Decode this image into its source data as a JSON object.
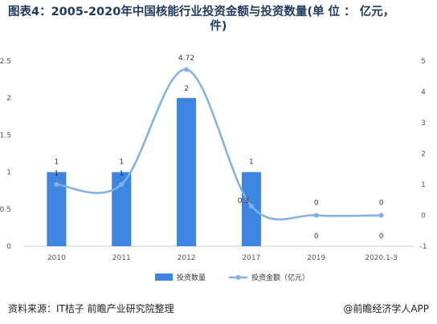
{
  "title_line1": "图表4：2005-2020年中国核能行业投资金额与投资数量(单 位 ： 亿元，",
  "title_line2": "件)",
  "source": "资料来源：IT桔子 前瞻产业研究院整理",
  "brand": "@前瞻经济学人APP",
  "colors": {
    "bar": "#3d85e0",
    "line": "#7fb0e6",
    "title": "#1f3a5f"
  },
  "chart_data": {
    "type": "bar",
    "categories": [
      "2010",
      "2011",
      "2012",
      "2017",
      "2019",
      "2020.1-3"
    ],
    "series": [
      {
        "name": "投资数量",
        "type": "bar",
        "axis": "left",
        "values": [
          1,
          1,
          2,
          1,
          0,
          0
        ],
        "labels": [
          "1",
          "1",
          "2",
          "1",
          "0",
          "0"
        ]
      },
      {
        "name": "投资金额（亿元）",
        "type": "line",
        "axis": "right",
        "smooth": true,
        "values": [
          1,
          1,
          4.72,
          0.3,
          0,
          0
        ],
        "labels": [
          "1",
          "1",
          "4.72",
          "0.3",
          "0",
          "0"
        ]
      }
    ],
    "y_left": {
      "ylim": [
        0,
        2.5
      ],
      "ticks": [
        "0",
        "0.5",
        "1",
        "1.5",
        "2",
        "2.5"
      ]
    },
    "y_right": {
      "ylim": [
        -1,
        5
      ],
      "ticks": [
        "-1",
        "0",
        "1",
        "2",
        "3",
        "4",
        "5"
      ]
    },
    "legend": "bottom",
    "grid": false
  }
}
